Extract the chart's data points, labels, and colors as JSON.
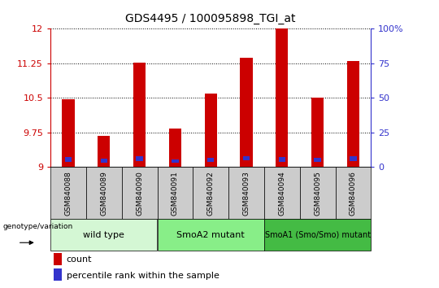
{
  "title": "GDS4495 / 100095898_TGI_at",
  "samples": [
    "GSM840088",
    "GSM840089",
    "GSM840090",
    "GSM840091",
    "GSM840092",
    "GSM840093",
    "GSM840094",
    "GSM840095",
    "GSM840096"
  ],
  "count_values": [
    10.47,
    9.68,
    11.27,
    9.83,
    10.6,
    11.38,
    12.0,
    10.5,
    11.3
  ],
  "percentile_values": [
    9.12,
    9.1,
    9.13,
    9.09,
    9.11,
    9.14,
    9.12,
    9.11,
    9.13
  ],
  "percentile_heights": [
    0.1,
    0.08,
    0.1,
    0.07,
    0.09,
    0.1,
    0.1,
    0.09,
    0.1
  ],
  "ymin": 9.0,
  "ymax": 12.0,
  "yticks": [
    9.0,
    9.75,
    10.5,
    11.25,
    12.0
  ],
  "ytick_labels": [
    "9",
    "9.75",
    "10.5",
    "11.25",
    "12"
  ],
  "right_yticks": [
    0,
    25,
    50,
    75,
    100
  ],
  "right_ytick_labels": [
    "0",
    "25",
    "50",
    "75",
    "100%"
  ],
  "bar_color": "#cc0000",
  "percentile_color": "#3333cc",
  "groups": [
    {
      "label": "wild type",
      "samples": [
        0,
        1,
        2
      ],
      "color": "#d4f7d4"
    },
    {
      "label": "SmoA2 mutant",
      "samples": [
        3,
        4,
        5
      ],
      "color": "#88ee88"
    },
    {
      "label": "SmoA1 (Smo/Smo) mutant",
      "samples": [
        6,
        7,
        8
      ],
      "color": "#44bb44"
    }
  ],
  "genotype_label": "genotype/variation",
  "legend_count_label": "count",
  "legend_percentile_label": "percentile rank within the sample",
  "tick_label_color_left": "#cc0000",
  "tick_label_color_right": "#3333cc",
  "bar_width": 0.35,
  "sample_bg_color": "#cccccc"
}
